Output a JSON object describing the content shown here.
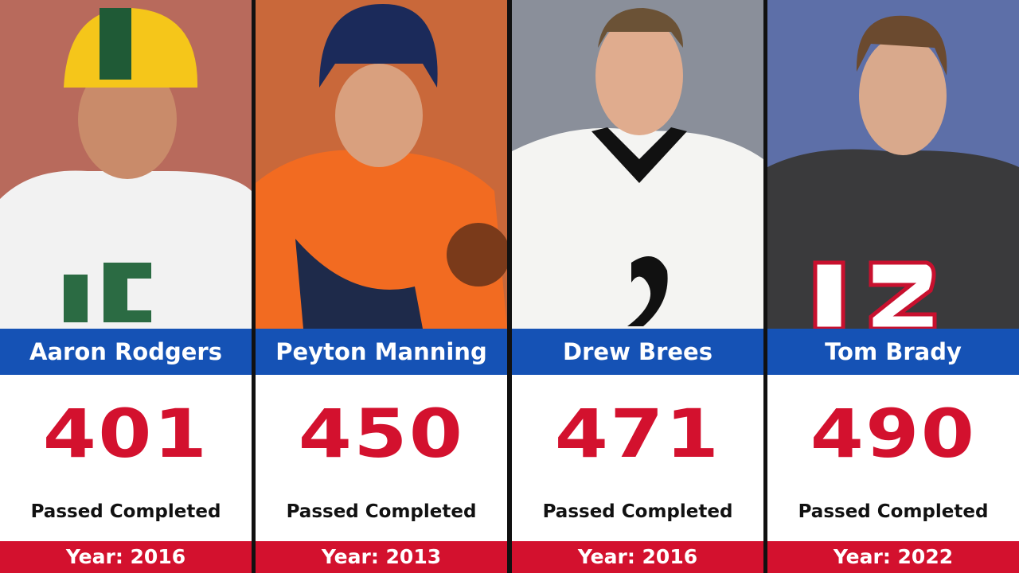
{
  "cards": [
    {
      "name": "Aaron Rodgers",
      "value": 401,
      "label": "Passed Completed",
      "year": "Year: 2016"
    },
    {
      "name": "Peyton Manning",
      "value": 450,
      "label": "Passed Completed",
      "year": "Year: 2013"
    },
    {
      "name": "Drew Brees",
      "value": 471,
      "label": "Passed Completed",
      "year": "Year: 2016"
    },
    {
      "name": "Tom Brady",
      "value": 490,
      "label": "Passed Completed",
      "year": "Year: 2022"
    }
  ]
}
